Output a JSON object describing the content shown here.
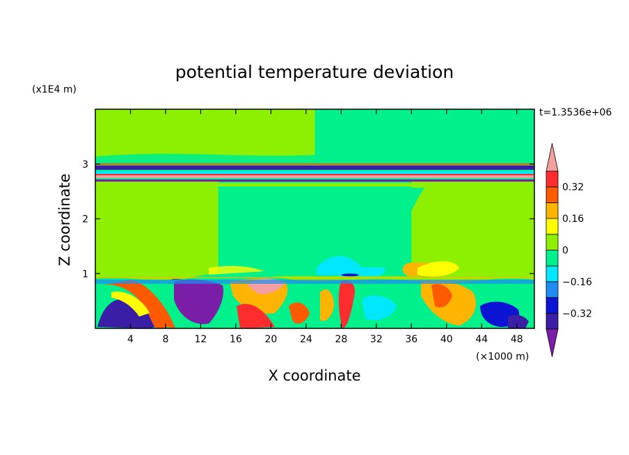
{
  "chart_data": {
    "type": "heatmap",
    "title": "potential temperature deviation",
    "xlabel": "X coordinate",
    "ylabel": "Z coordinate",
    "x_unit": "(×1000 m)",
    "y_unit": "(x1E4 m)",
    "time_label": "t=1.3536e+06",
    "xlim": [
      0,
      50
    ],
    "ylim": [
      0,
      4
    ],
    "x_ticks": [
      4,
      8,
      12,
      16,
      20,
      24,
      28,
      32,
      36,
      40,
      44,
      48
    ],
    "y_ticks": [
      1,
      2,
      3
    ],
    "colorbar": {
      "levels": [
        -0.4,
        -0.32,
        -0.24,
        -0.16,
        -0.08,
        0,
        0.08,
        0.16,
        0.24,
        0.32,
        0.4
      ],
      "labels": [
        "0.32",
        "0.16",
        "0",
        "−0.16",
        "−0.32"
      ],
      "label_values": [
        0.32,
        0.16,
        0,
        -0.16,
        -0.32
      ],
      "colors": [
        "#7a1ea8",
        "#3a1ea6",
        "#0a14d2",
        "#1e8cf2",
        "#00e8ff",
        "#00f08c",
        "#8cf000",
        "#ffff00",
        "#ffb400",
        "#ff5a00",
        "#ff2d2d",
        "#f5a0a0"
      ]
    },
    "regions": [
      {
        "value": 0.04,
        "x": [
          0,
          50
        ],
        "z": [
          0.95,
          4.0
        ]
      },
      {
        "value": -0.04,
        "x": [
          14,
          36
        ],
        "z": [
          0.95,
          2.7
        ]
      },
      {
        "value": -0.04,
        "x": [
          25,
          50
        ],
        "z": [
          3.05,
          4.0
        ]
      },
      {
        "value": -0.04,
        "x": [
          0,
          50
        ],
        "z": [
          2.7,
          3.05
        ]
      },
      {
        "value": 0.36,
        "x": [
          0,
          50
        ],
        "z": [
          2.78,
          2.82
        ]
      },
      {
        "value": -0.36,
        "x": [
          0,
          50
        ],
        "z": [
          2.9,
          2.94
        ]
      },
      {
        "value": 0.28,
        "x": [
          0,
          50
        ],
        "z": [
          2.98,
          3.02
        ]
      },
      {
        "value": -0.12,
        "x": [
          27,
          33
        ],
        "z": [
          0.95,
          1.3
        ]
      },
      {
        "value": -0.28,
        "x": [
          28,
          30
        ],
        "z": [
          0.95,
          1.0
        ]
      },
      {
        "value": 0.2,
        "x": [
          35,
          40
        ],
        "z": [
          0.95,
          1.2
        ]
      },
      {
        "value": 0.0,
        "x": [
          0,
          50
        ],
        "z": [
          0,
          0.95
        ]
      },
      {
        "value": -0.36,
        "x": [
          8,
          14
        ],
        "z": [
          0.2,
          0.9
        ]
      },
      {
        "value": -0.28,
        "x": [
          44,
          48
        ],
        "z": [
          0.05,
          0.5
        ]
      },
      {
        "value": -0.28,
        "x": [
          1,
          6
        ],
        "z": [
          0.05,
          0.5
        ]
      },
      {
        "value": 0.24,
        "x": [
          15,
          22
        ],
        "z": [
          0.1,
          0.9
        ]
      },
      {
        "value": 0.36,
        "x": [
          18,
          21
        ],
        "z": [
          0.3,
          0.9
        ]
      },
      {
        "value": 0.28,
        "x": [
          28,
          29
        ],
        "z": [
          0.0,
          0.8
        ]
      },
      {
        "value": 0.2,
        "x": [
          39,
          43
        ],
        "z": [
          0.1,
          0.85
        ]
      }
    ]
  }
}
